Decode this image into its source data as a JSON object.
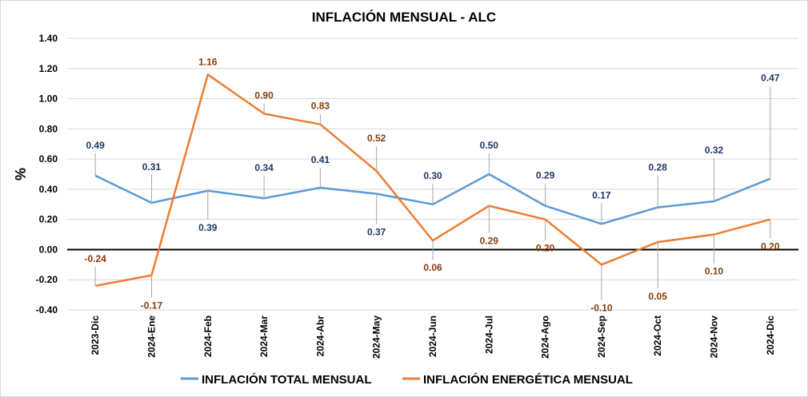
{
  "chart_data": {
    "type": "line",
    "title": "INFLACIÓN MENSUAL - ALC",
    "ylabel": "%",
    "xlabel": "",
    "ylim": [
      -0.4,
      1.4
    ],
    "yticks": [
      "1.40",
      "1.20",
      "1.00",
      "0.80",
      "0.60",
      "0.40",
      "0.20",
      "0.00",
      "-0.20",
      "-0.40"
    ],
    "grid": true,
    "legend_position": "bottom",
    "categories": [
      "2023-Dic",
      "2024-Ene",
      "2024-Feb",
      "2024-Mar",
      "2024-Abr",
      "2024-May",
      "2024-Jun",
      "2024-Jul",
      "2024-Ago",
      "2024-Sep",
      "2024-Oct",
      "2024-Nov",
      "2024-Dic"
    ],
    "series": [
      {
        "name": "INFLACIÓN TOTAL MENSUAL",
        "color": "#5B9BD5",
        "label_color": "#1F3864",
        "values": [
          0.49,
          0.31,
          0.39,
          0.34,
          0.41,
          0.37,
          0.3,
          0.5,
          0.29,
          0.17,
          0.28,
          0.32,
          0.47
        ],
        "labels": [
          "0.49",
          "0.31",
          "0.39",
          "0.34",
          "0.41",
          "0.37",
          "0.30",
          "0.50",
          "0.29",
          "0.17",
          "0.28",
          "0.32",
          "0.47"
        ]
      },
      {
        "name": "INFLACIÓN ENERGÉTICA MENSUAL",
        "color": "#ED7D31",
        "label_color": "#843C0C",
        "values": [
          -0.24,
          -0.17,
          1.16,
          0.9,
          0.83,
          0.52,
          0.06,
          0.29,
          0.2,
          -0.1,
          0.05,
          0.1,
          0.2
        ],
        "labels": [
          "-0.24",
          "-0.17",
          "1.16",
          "0.90",
          "0.83",
          "0.52",
          "0.06",
          "0.29",
          "0.20",
          "-0.10",
          "0.05",
          "0.10",
          "0.20"
        ]
      }
    ]
  }
}
